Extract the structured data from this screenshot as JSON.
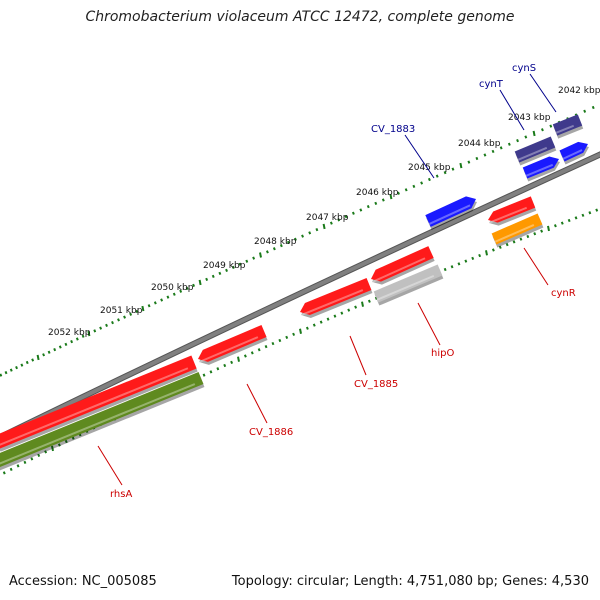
{
  "title": "Chromobacterium violaceum ATCC 12472, complete genome",
  "footer": {
    "accession": "Accession: NC_005085",
    "summary": "Topology: circular; Length: 4,751,080 bp; Genes: 4,530"
  },
  "ticks": [
    {
      "label": "2042 kbp"
    },
    {
      "label": "2043 kbp"
    },
    {
      "label": "2044 kbp"
    },
    {
      "label": "2045 kbp"
    },
    {
      "label": "2046 kbp"
    },
    {
      "label": "2047 kbp"
    },
    {
      "label": "2048 kbp"
    },
    {
      "label": "2049 kbp"
    },
    {
      "label": "2050 kbp"
    },
    {
      "label": "2051 kbp"
    },
    {
      "label": "2052 kbp"
    }
  ],
  "genes": [
    {
      "name": "cynS",
      "color": "#00008b"
    },
    {
      "name": "cynT",
      "color": "#00008b"
    },
    {
      "name": "CV_1883",
      "color": "#00008b"
    },
    {
      "name": "cynR",
      "color": "#cc0000"
    },
    {
      "name": "hipO",
      "color": "#cc0000"
    },
    {
      "name": "CV_1885",
      "color": "#cc0000"
    },
    {
      "name": "CV_1886",
      "color": "#cc0000"
    },
    {
      "name": "rhsA",
      "color": "#cc0000"
    }
  ],
  "colors": {
    "backbone": "#808080",
    "tick_marks": "#1a7a1a",
    "cds_forward": "#1a1aff",
    "cds_forward_dark": "#3f3a8c",
    "cds_reverse": "#ff1a1a",
    "feature_orange": "#ff9900",
    "feature_gray": "#c0c0c0",
    "feature_olive": "#5f8a1f"
  }
}
